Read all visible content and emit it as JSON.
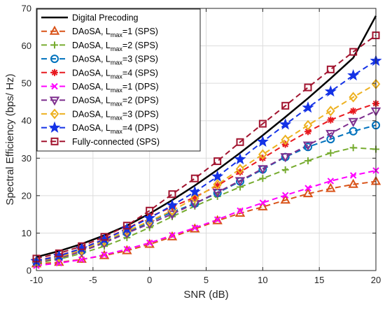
{
  "chart_data": {
    "type": "line",
    "xlabel": "SNR (dB)",
    "ylabel": "Spectral Efficiency (bps/ Hz)",
    "xlim": [
      -10,
      20
    ],
    "ylim": [
      0,
      70
    ],
    "xticks": [
      -10,
      -5,
      0,
      5,
      10,
      15,
      20
    ],
    "yticks": [
      0,
      10,
      20,
      30,
      40,
      50,
      60,
      70
    ],
    "grid": true,
    "legend_position": "top-left",
    "x": [
      -10,
      -8,
      -6,
      -4,
      -2,
      0,
      2,
      4,
      6,
      8,
      10,
      12,
      14,
      16,
      18,
      20
    ],
    "series": [
      {
        "name": "Digital Precoding",
        "name_main": "Digital Precoding",
        "name_sub": "",
        "name_suffix": "",
        "color": "#000000",
        "line": "solid",
        "marker": "none",
        "values": [
          3.6,
          5.2,
          7.1,
          9.4,
          12.0,
          15.2,
          18.8,
          22.7,
          26.9,
          31.4,
          36.1,
          41.0,
          46.0,
          51.3,
          56.8,
          68.0
        ]
      },
      {
        "name": "DAoSA, Lmax=1 (SPS)",
        "name_main": "DAoSA, L",
        "name_sub": "max",
        "name_suffix": "=1 (SPS)",
        "color": "#D95319",
        "line": "dashed",
        "marker": "triangle-up",
        "values": [
          1.8,
          2.2,
          3.0,
          4.0,
          5.3,
          7.0,
          9.0,
          11.1,
          13.3,
          15.3,
          17.0,
          18.8,
          20.5,
          21.9,
          23.0,
          23.8
        ]
      },
      {
        "name": "DAoSA, Lmax=2 (SPS)",
        "name_main": "DAoSA, L",
        "name_sub": "max",
        "name_suffix": "=2 (SPS)",
        "color": "#77AC30",
        "line": "dashed",
        "marker": "plus",
        "values": [
          2.0,
          3.0,
          4.6,
          6.5,
          8.8,
          11.5,
          14.4,
          17.2,
          19.8,
          22.3,
          24.6,
          26.9,
          29.3,
          31.4,
          32.8,
          32.4
        ]
      },
      {
        "name": "DAoSA, Lmax=3 (SPS)",
        "name_main": "DAoSA, L",
        "name_sub": "max",
        "name_suffix": "=3 (SPS)",
        "color": "#0072BD",
        "line": "dashed",
        "marker": "circle",
        "values": [
          2.3,
          3.5,
          5.3,
          7.6,
          10.1,
          13.0,
          15.6,
          17.9,
          20.7,
          23.8,
          27.0,
          30.3,
          33.0,
          35.1,
          37.2,
          38.8
        ]
      },
      {
        "name": "DAoSA, Lmax=4 (SPS)",
        "name_main": "DAoSA, L",
        "name_sub": "max",
        "name_suffix": "=4 (SPS)",
        "color": "#E8191F",
        "line": "dashed",
        "marker": "asterisk",
        "values": [
          2.6,
          4.0,
          5.9,
          8.4,
          11.2,
          14.3,
          17.0,
          19.6,
          22.7,
          26.3,
          30.0,
          33.7,
          37.1,
          40.2,
          42.6,
          44.6
        ]
      },
      {
        "name": "DAoSA, Lmax=1 (DPS)",
        "name_main": "DAoSA, L",
        "name_sub": "max",
        "name_suffix": "=1 (DPS)",
        "color": "#FF00FF",
        "line": "dashed",
        "marker": "x",
        "values": [
          1.3,
          2.0,
          2.9,
          4.2,
          5.7,
          7.4,
          9.4,
          11.4,
          13.6,
          16.0,
          18.1,
          20.1,
          22.0,
          23.9,
          25.4,
          26.7
        ]
      },
      {
        "name": "DAoSA, Lmax=2 (DPS)",
        "name_main": "DAoSA, L",
        "name_sub": "max",
        "name_suffix": "=2 (DPS)",
        "color": "#7E2F8E",
        "line": "dashed",
        "marker": "triangle-down",
        "values": [
          2.2,
          3.3,
          5.1,
          7.4,
          10.0,
          12.5,
          15.1,
          17.9,
          20.9,
          24.0,
          27.2,
          30.4,
          33.5,
          36.6,
          39.8,
          42.6
        ]
      },
      {
        "name": "DAoSA, Lmax=3 (DPS)",
        "name_main": "DAoSA, L",
        "name_sub": "max",
        "name_suffix": "=3 (DPS)",
        "color": "#EDB120",
        "line": "dashed",
        "marker": "diamond",
        "values": [
          2.4,
          3.6,
          5.5,
          7.9,
          10.6,
          13.2,
          16.0,
          19.3,
          23.0,
          27.1,
          31.0,
          34.9,
          38.8,
          42.6,
          46.3,
          49.8
        ]
      },
      {
        "name": "DAoSA, Lmax=4 (DPS)",
        "name_main": "DAoSA, L",
        "name_sub": "max",
        "name_suffix": "=4 (DPS)",
        "color": "#1432E6",
        "line": "dashed",
        "marker": "pentagram",
        "values": [
          2.5,
          3.9,
          5.9,
          8.3,
          11.1,
          14.0,
          17.4,
          21.0,
          25.1,
          29.7,
          34.4,
          39.0,
          43.5,
          47.8,
          52.1,
          56.0
        ]
      },
      {
        "name": "Fully-connected (SPS)",
        "name_main": "Fully-connected (SPS)",
        "name_sub": "",
        "name_suffix": "",
        "color": "#A2142F",
        "line": "dashed",
        "marker": "square",
        "values": [
          3.2,
          4.6,
          6.5,
          9.0,
          12.0,
          16.0,
          20.4,
          24.6,
          29.2,
          34.3,
          39.2,
          44.0,
          48.9,
          53.7,
          58.4,
          62.8
        ]
      }
    ]
  }
}
